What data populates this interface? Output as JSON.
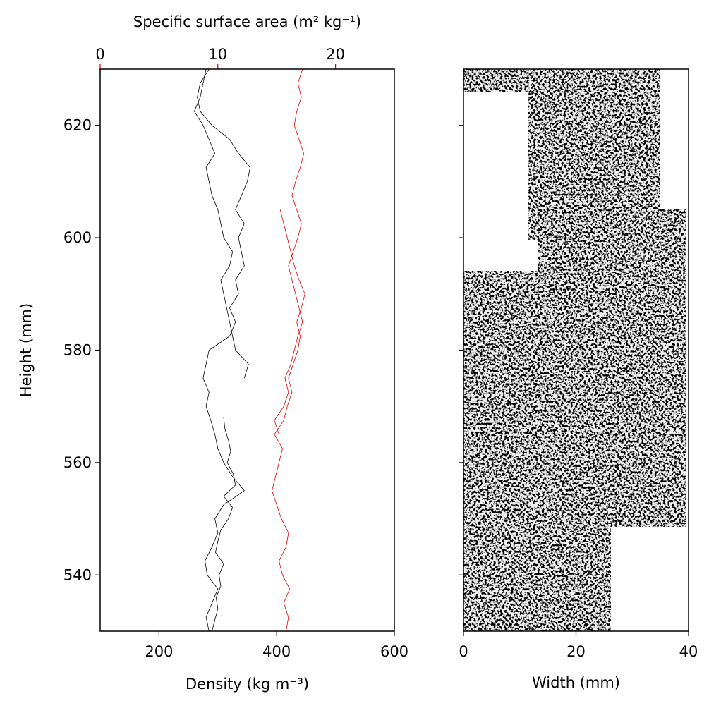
{
  "chart_data": [
    {
      "type": "line",
      "xlabel": "Density (kg m⁻³)",
      "ylabel": "Height (mm)",
      "x2label": "Specific surface area (m² kg⁻¹)",
      "xlim": [
        100,
        600
      ],
      "xticks": [
        200,
        400,
        600
      ],
      "x2lim": [
        0,
        25
      ],
      "x2ticks": [
        0,
        10,
        20
      ],
      "x2color": "#e00000",
      "ylim": [
        530,
        630
      ],
      "yticks": [
        540,
        560,
        580,
        600,
        620
      ],
      "series": [
        {
          "color": "#000000",
          "axis": "x",
          "y": [
            530,
            532,
            534,
            536,
            538,
            540,
            542,
            544,
            546,
            548,
            550,
            552,
            554,
            556,
            558,
            560,
            562,
            564,
            566,
            568
          ],
          "values": [
            290,
            295,
            300,
            297,
            305,
            302,
            310,
            296,
            300,
            305,
            318,
            325,
            310,
            330,
            326,
            316,
            322,
            318,
            312,
            310
          ]
        },
        {
          "color": "#000000",
          "axis": "x",
          "y": [
            530,
            532.5,
            535,
            537.5,
            540,
            542.5,
            545,
            547.5,
            550,
            552.5,
            555,
            557.5,
            560,
            562.5,
            565,
            567.5,
            570,
            572.5,
            575,
            577.5,
            580,
            582.5,
            585,
            587.5,
            590,
            592.5,
            595,
            597.5,
            600,
            602.5,
            605,
            607.5,
            610,
            612.5,
            615,
            617.5,
            620,
            622.5,
            625,
            627.5,
            630
          ],
          "values": [
            285,
            280,
            290,
            300,
            282,
            278,
            290,
            300,
            295,
            310,
            345,
            325,
            310,
            300,
            295,
            288,
            280,
            285,
            275,
            280,
            285,
            320,
            330,
            320,
            335,
            330,
            345,
            340,
            335,
            345,
            330,
            340,
            350,
            355,
            335,
            320,
            290,
            270,
            265,
            270,
            285
          ]
        },
        {
          "color": "#000000",
          "axis": "x",
          "y": [
            575,
            577.5,
            580,
            582.5,
            585,
            587.5,
            590,
            592.5,
            595,
            597.5,
            600,
            602.5,
            605,
            607.5,
            610,
            612.5,
            615,
            617.5,
            620,
            622.5,
            625,
            627.5,
            630
          ],
          "values": [
            345,
            352,
            330,
            325,
            320,
            315,
            310,
            305,
            320,
            325,
            310,
            305,
            300,
            290,
            285,
            280,
            295,
            285,
            275,
            260,
            270,
            275,
            280
          ]
        },
        {
          "color": "#e00000",
          "axis": "x2",
          "y": [
            530,
            532.5,
            535,
            537.5,
            540,
            542.5,
            545,
            547.5,
            550,
            552.5,
            555,
            557.5,
            560,
            562.5,
            565,
            567.5,
            570,
            572.5,
            575,
            577.5,
            580,
            582.5,
            585,
            587.5,
            590,
            592.5,
            595,
            597.5,
            600,
            602.5,
            605
          ],
          "values": [
            15.8,
            16.0,
            15.6,
            16.1,
            15.5,
            15.2,
            15.8,
            16.0,
            15.4,
            15.0,
            14.6,
            14.9,
            15.2,
            15.5,
            14.8,
            15.6,
            15.9,
            16.3,
            16.0,
            16.4,
            16.8,
            17.0,
            16.7,
            17.1,
            17.4,
            16.9,
            16.5,
            16.2,
            15.9,
            15.6,
            15.3
          ]
        },
        {
          "color": "#e00000",
          "axis": "x2",
          "y": [
            565,
            567.5,
            570,
            572.5,
            575,
            577.5,
            580,
            582.5,
            585,
            587.5,
            590,
            592.5,
            595,
            597.5,
            600,
            602.5,
            605,
            607.5,
            610,
            612.5,
            615,
            617.5,
            620,
            622.5,
            625,
            627.5,
            630
          ],
          "values": [
            15.2,
            14.8,
            15.6,
            16.0,
            15.7,
            16.2,
            16.5,
            16.8,
            17.2,
            16.9,
            16.6,
            16.3,
            16.0,
            16.4,
            16.8,
            17.1,
            16.7,
            16.3,
            16.6,
            17.0,
            17.3,
            16.9,
            16.5,
            16.7,
            17.1,
            16.8,
            17.2
          ]
        }
      ]
    },
    {
      "type": "image",
      "xlabel": "Width (mm)",
      "xlim": [
        0,
        40
      ],
      "xticks": [
        0,
        20,
        40
      ],
      "ylim": [
        530,
        630
      ],
      "yticks": [
        540,
        560,
        580,
        600,
        620
      ]
    }
  ]
}
